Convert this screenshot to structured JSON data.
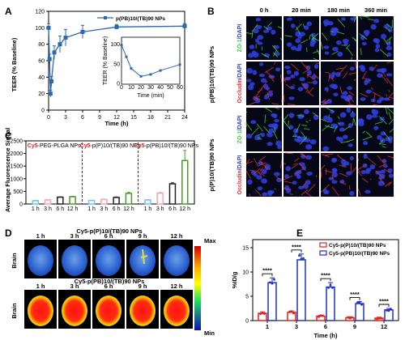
{
  "panels": {
    "A": "A",
    "B": "B",
    "C": "C",
    "D": "D",
    "E": "E"
  },
  "panelA": {
    "legend": "p(PB)10/(TB)90 NPs",
    "ylabel": "TEER (% Baseline)",
    "xlabel": "Time (h)",
    "inset_ylabel": "TEER (% Baseline)",
    "inset_xlabel": "Time (min)",
    "chart_data": {
      "type": "line",
      "x": [
        0,
        0.167,
        0.333,
        0.5,
        1,
        2,
        3,
        6,
        12,
        24
      ],
      "y": [
        100,
        62,
        20,
        35,
        70,
        80,
        88,
        95,
        101,
        102
      ],
      "yerr": [
        5,
        6,
        4,
        6,
        8,
        10,
        10,
        8,
        3,
        3
      ],
      "xticks": [
        "0",
        "3",
        "6",
        "9",
        "12",
        "15",
        "18",
        "21",
        "24"
      ],
      "yticks": [
        "0",
        "20",
        "40",
        "60",
        "80",
        "100",
        "120"
      ],
      "xlim": [
        0,
        24
      ],
      "ylim": [
        0,
        120
      ],
      "inset": {
        "x": [
          0,
          5,
          10,
          20,
          30,
          40,
          60
        ],
        "y": [
          100,
          70,
          40,
          20,
          25,
          35,
          50
        ],
        "xticks": [
          "0",
          "10",
          "20",
          "30",
          "40",
          "50",
          "60"
        ],
        "yticks": [
          "0",
          "50",
          "100"
        ],
        "xlim": [
          0,
          60
        ],
        "ylim": [
          0,
          120
        ]
      }
    }
  },
  "panelB": {
    "cols": [
      "0 h",
      "20 min",
      "180 min",
      "360 min"
    ],
    "group1": "p(PB)10/(TB)90 NPs",
    "group2": "p(P)10/(TB)90 NPs",
    "row_zo1_a": "ZO-1",
    "row_zo1_b": "/DAPI",
    "row_occ_a": "Occludin",
    "row_occ_b": "/DAPI",
    "colors": {
      "zo1": "#3fcf3f",
      "dapi": "#3040e0",
      "occludin": "#e0303a"
    }
  },
  "panelC": {
    "ylabel": "Average Fluorescence Singal",
    "groups": [
      {
        "prefix": "Cy5-",
        "rest": "PEG-PLGA NPs"
      },
      {
        "prefix": "Cy5-",
        "rest": "p(P)10/(TB)90 NPs"
      },
      {
        "prefix": "Cy5-",
        "rest": "p(PB)10/(TB)90 NPs"
      }
    ],
    "chart_data": {
      "type": "bar",
      "categories": [
        "1 h",
        "3 h",
        "6 h",
        "12 h"
      ],
      "yticks": [
        "0",
        "500",
        "1000",
        "1500",
        "2000",
        "2500"
      ],
      "ylim": [
        0,
        2500
      ],
      "series": [
        {
          "values": [
            130,
            160,
            270,
            290
          ],
          "err": [
            10,
            10,
            15,
            15
          ]
        },
        {
          "values": [
            140,
            180,
            260,
            420
          ],
          "err": [
            10,
            15,
            20,
            40
          ]
        },
        {
          "values": [
            160,
            430,
            800,
            1720
          ],
          "err": [
            15,
            30,
            40,
            400
          ]
        }
      ],
      "bar_colors": [
        "#6fc6e8",
        "#f5a3b0",
        "#222222",
        "#4a9a2a"
      ]
    }
  },
  "panelD": {
    "title1": "Cy5-p(P)10/(TB)90 NPs",
    "title2": "Cy5-p(PB)10/(TB)90 NPs",
    "cols": [
      "1 h",
      "3 h",
      "6 h",
      "9 h",
      "12 h"
    ],
    "row_label": "Brain",
    "scale_max": "Max",
    "scale_min": "Min"
  },
  "panelE": {
    "ylabel": "%ID/g",
    "xlabel": "Time (h)",
    "legend": [
      "Cy5-p(P)10/(TB)90 NPs",
      "Cy5-p(PB)10/(TB)90 NPs"
    ],
    "sig": "****",
    "chart_data": {
      "type": "bar",
      "categories": [
        "1",
        "3",
        "6",
        "9",
        "12"
      ],
      "yticks": [
        "0",
        "5",
        "10",
        "15"
      ],
      "ylim": [
        0,
        15
      ],
      "series": [
        {
          "name": "Cy5-p(P)10/(TB)90 NPs",
          "values": [
            1.5,
            1.7,
            0.9,
            0.6,
            0.5
          ],
          "err": [
            0.3,
            0.3,
            0.2,
            0.2,
            0.2
          ]
        },
        {
          "name": "Cy5-p(PB)10/(TB)90 NPs",
          "values": [
            7.8,
            12.5,
            6.9,
            3.5,
            2.2
          ],
          "err": [
            1.0,
            1.2,
            0.9,
            0.4,
            0.3
          ]
        }
      ],
      "colors": [
        "#e02020",
        "#2030c0"
      ]
    }
  }
}
